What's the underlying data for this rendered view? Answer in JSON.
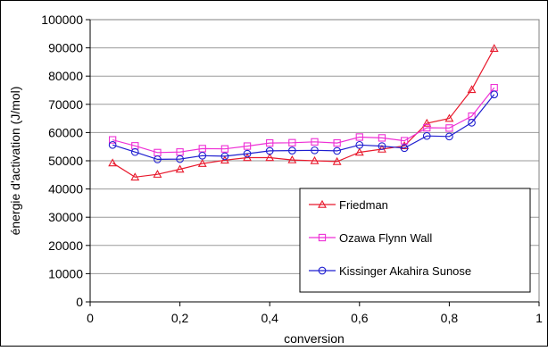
{
  "chart_data": {
    "type": "line",
    "title": "",
    "xlabel": "conversion",
    "ylabel": "énergie d'activation (J/mol)",
    "xlim": [
      0,
      1
    ],
    "ylim": [
      0,
      100000
    ],
    "grid": "horizontal",
    "legend_position": "bottom-right",
    "x_ticks": [
      "0",
      "0,2",
      "0,4",
      "0,6",
      "0,8",
      "1"
    ],
    "y_ticks": [
      "0",
      "10000",
      "20000",
      "30000",
      "40000",
      "50000",
      "60000",
      "70000",
      "80000",
      "90000",
      "100000"
    ],
    "x": [
      0.05,
      0.1,
      0.15,
      0.2,
      0.25,
      0.3,
      0.35,
      0.4,
      0.45,
      0.5,
      0.55,
      0.6,
      0.65,
      0.7,
      0.75,
      0.8,
      0.85,
      0.9
    ],
    "series": [
      {
        "name": "Friedman",
        "color": "#e8192c",
        "marker": "triangle",
        "values": [
          49200,
          44200,
          45200,
          47000,
          49000,
          50200,
          51100,
          51100,
          50300,
          50000,
          49700,
          53000,
          54100,
          55300,
          63300,
          65000,
          75200,
          89800
        ]
      },
      {
        "name": "Ozawa Flynn Wall",
        "color": "#ee2fd5",
        "marker": "square",
        "values": [
          57400,
          55300,
          52900,
          53100,
          54300,
          54200,
          55200,
          56300,
          56400,
          56700,
          56300,
          58400,
          58100,
          57100,
          61700,
          61600,
          65800,
          75900
        ]
      },
      {
        "name": "Kissinger Akahira Sunose",
        "color": "#1f1fd0",
        "marker": "circle",
        "values": [
          55600,
          53100,
          50500,
          50600,
          51800,
          51600,
          52500,
          53500,
          53600,
          53700,
          53500,
          55600,
          55200,
          54500,
          58800,
          58600,
          63500,
          73500
        ]
      }
    ]
  }
}
